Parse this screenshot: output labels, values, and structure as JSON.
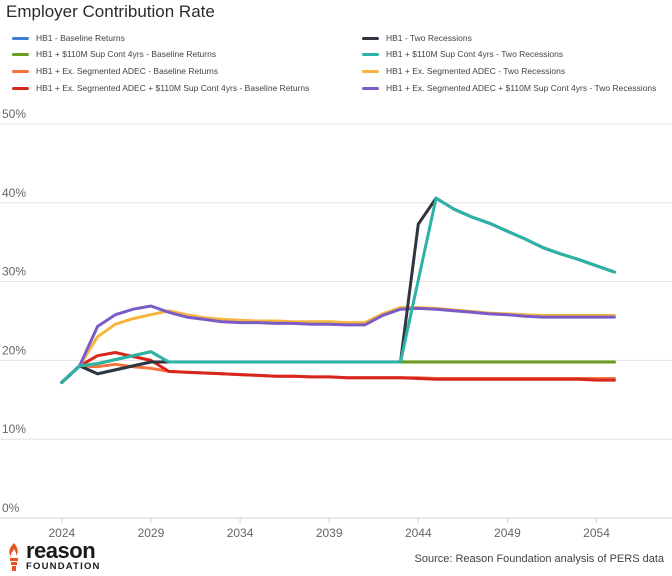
{
  "chart_data": {
    "type": "line",
    "title": "Employer Contribution Rate",
    "xlabel": "",
    "ylabel": "",
    "x": [
      2024,
      2025,
      2026,
      2027,
      2028,
      2029,
      2030,
      2031,
      2032,
      2033,
      2034,
      2035,
      2036,
      2037,
      2038,
      2039,
      2040,
      2041,
      2042,
      2043,
      2044,
      2045,
      2046,
      2047,
      2048,
      2049,
      2050,
      2051,
      2052,
      2053,
      2054,
      2055
    ],
    "xticks": [
      2024,
      2029,
      2034,
      2039,
      2044,
      2049,
      2054
    ],
    "xtick_labels": [
      "2024",
      "2029",
      "2034",
      "2039",
      "2044",
      "2049",
      "2054"
    ],
    "ylim": [
      0,
      50
    ],
    "yticks": [
      0,
      10,
      20,
      30,
      40,
      50
    ],
    "ytick_labels": [
      "0%",
      "10%",
      "20%",
      "30%",
      "40%",
      "50%"
    ],
    "grid": true,
    "legend_position": "top",
    "series": [
      {
        "name": "HB1 - Baseline Returns",
        "color": "#3d7fd1",
        "values": [
          17.2,
          19.3,
          18.3,
          18.8,
          19.3,
          19.8,
          19.8,
          19.8,
          19.8,
          19.8,
          19.8,
          19.8,
          19.8,
          19.8,
          19.8,
          19.8,
          19.8,
          19.8,
          19.8,
          19.8,
          19.8,
          19.8,
          19.8,
          19.8,
          19.8,
          19.8,
          19.8,
          19.8,
          19.8,
          19.8,
          19.8,
          19.8
        ]
      },
      {
        "name": "HB1 - Two Recessions",
        "color": "#2f3640",
        "values": [
          17.2,
          19.3,
          18.3,
          18.8,
          19.3,
          19.8,
          19.8,
          19.8,
          19.8,
          19.8,
          19.8,
          19.8,
          19.8,
          19.8,
          19.8,
          19.8,
          19.8,
          19.8,
          19.8,
          19.8,
          37.3,
          40.6,
          39.2,
          38.2,
          37.4,
          36.4,
          35.4,
          34.3,
          33.5,
          32.8,
          32.0,
          31.2
        ]
      },
      {
        "name": "HB1 + $110M Sup Cont 4yrs - Baseline Returns",
        "color": "#6a9e1f",
        "values": [
          17.2,
          19.3,
          19.6,
          20.1,
          20.6,
          21.1,
          19.8,
          19.8,
          19.8,
          19.8,
          19.8,
          19.8,
          19.8,
          19.8,
          19.8,
          19.8,
          19.8,
          19.8,
          19.8,
          19.8,
          19.8,
          19.8,
          19.8,
          19.8,
          19.8,
          19.8,
          19.8,
          19.8,
          19.8,
          19.8,
          19.8,
          19.8
        ]
      },
      {
        "name": "HB1 + $110M Sup Cont 4yrs - Two Recessions",
        "color": "#2bb3a8",
        "values": [
          17.2,
          19.3,
          19.6,
          20.1,
          20.6,
          21.1,
          19.8,
          19.8,
          19.8,
          19.8,
          19.8,
          19.8,
          19.8,
          19.8,
          19.8,
          19.8,
          19.8,
          19.8,
          19.8,
          19.8,
          30.2,
          40.6,
          39.2,
          38.2,
          37.4,
          36.4,
          35.4,
          34.3,
          33.5,
          32.8,
          32.0,
          31.2
        ]
      },
      {
        "name": "HB1 + Ex. Segmented ADEC - Baseline Returns",
        "color": "#f4733f",
        "values": [
          17.2,
          19.3,
          19.2,
          19.5,
          19.2,
          19.0,
          18.6,
          18.5,
          18.4,
          18.3,
          18.2,
          18.1,
          18.0,
          18.0,
          17.9,
          17.9,
          17.8,
          17.8,
          17.8,
          17.8,
          17.8,
          17.7,
          17.7,
          17.7,
          17.7,
          17.7,
          17.7,
          17.7,
          17.7,
          17.7,
          17.7,
          17.7
        ]
      },
      {
        "name": "HB1 + Ex. Segmented ADEC - Two Recessions",
        "color": "#f6b63c",
        "values": [
          17.2,
          19.3,
          23.0,
          24.6,
          25.3,
          25.8,
          26.3,
          25.8,
          25.4,
          25.2,
          25.1,
          25.0,
          25.0,
          24.9,
          24.9,
          24.9,
          24.8,
          24.8,
          25.9,
          26.7,
          26.7,
          26.6,
          26.4,
          26.2,
          26.0,
          25.9,
          25.8,
          25.7,
          25.7,
          25.7,
          25.7,
          25.7
        ]
      },
      {
        "name": "HB1 + Ex. Segmented ADEC + $110M Sup Cont 4yrs - Baseline Returns",
        "color": "#d7261e",
        "values": [
          17.2,
          19.3,
          20.6,
          21.0,
          20.5,
          20.0,
          18.6,
          18.5,
          18.4,
          18.3,
          18.2,
          18.1,
          18.0,
          18.0,
          17.9,
          17.9,
          17.8,
          17.8,
          17.8,
          17.8,
          17.7,
          17.6,
          17.6,
          17.6,
          17.6,
          17.6,
          17.6,
          17.6,
          17.6,
          17.6,
          17.5,
          17.5
        ]
      },
      {
        "name": "HB1 + Ex. Segmented ADEC + $110M Sup Cont 4yrs - Two Recessions",
        "color": "#7b5cc7",
        "values": [
          17.2,
          19.3,
          24.3,
          25.8,
          26.5,
          26.9,
          26.1,
          25.5,
          25.2,
          24.9,
          24.8,
          24.8,
          24.7,
          24.7,
          24.6,
          24.6,
          24.5,
          24.5,
          25.7,
          26.5,
          26.6,
          26.5,
          26.3,
          26.1,
          25.9,
          25.8,
          25.6,
          25.5,
          25.5,
          25.5,
          25.5,
          25.5
        ]
      }
    ]
  },
  "legend": [
    {
      "label": "HB1 - Baseline Returns",
      "color": "#3d7fd1"
    },
    {
      "label": "HB1 - Two Recessions",
      "color": "#2f3640"
    },
    {
      "label": "HB1 + $110M Sup Cont 4yrs - Baseline Returns",
      "color": "#6a9e1f"
    },
    {
      "label": "HB1 + $110M Sup Cont 4yrs - Two Recessions",
      "color": "#2bb3a8"
    },
    {
      "label": "HB1 + Ex. Segmented ADEC - Baseline Returns",
      "color": "#f4733f"
    },
    {
      "label": "HB1 + Ex. Segmented ADEC - Two Recessions",
      "color": "#f6b63c"
    },
    {
      "label": "HB1 + Ex. Segmented ADEC + $110M Sup Cont 4yrs - Baseline Returns",
      "color": "#d7261e"
    },
    {
      "label": "HB1 + Ex. Segmented ADEC + $110M Sup Cont 4yrs - Two Recessions",
      "color": "#7b5cc7"
    }
  ],
  "logo": {
    "word": "reason",
    "sub": "FOUNDATION",
    "color": "#e8531f"
  },
  "source": "Source: Reason Foundation analysis of PERS data",
  "colors": {
    "grid": "#e3e3e3",
    "axis": "#cfcfcf"
  }
}
